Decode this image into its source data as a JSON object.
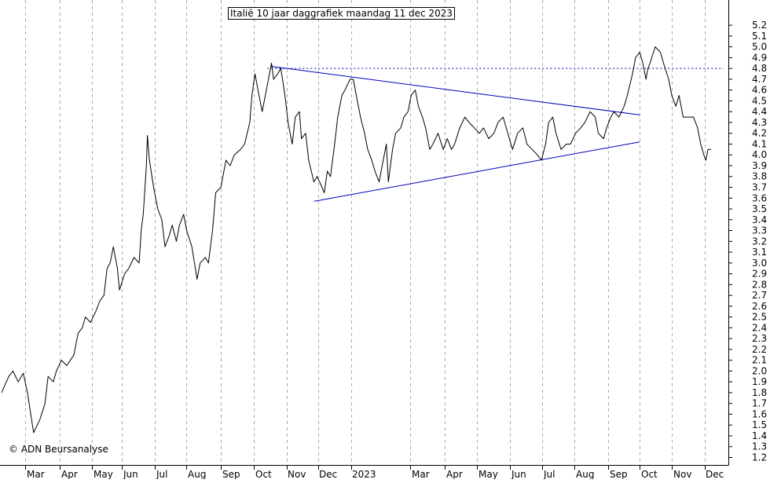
{
  "chart_data": {
    "type": "line",
    "title": "Italië 10 jaar daggrafiek maandag 11 dec 2023",
    "xlabel": "",
    "ylabel": "",
    "ylim": [
      1.1,
      5.3
    ],
    "y_ticks": [
      "1.2",
      "1.3",
      "1.4",
      "1.5",
      "1.6",
      "1.7",
      "1.8",
      "1.9",
      "2.0",
      "2.1",
      "2.2",
      "2.3",
      "2.4",
      "2.5",
      "2.6",
      "2.7",
      "2.8",
      "2.9",
      "3.0",
      "3.1",
      "3.2",
      "3.3",
      "3.4",
      "3.5",
      "3.6",
      "3.7",
      "3.8",
      "3.9",
      "4.0",
      "4.1",
      "4.2",
      "4.3",
      "4.4",
      "4.5",
      "4.6",
      "4.7",
      "4.8",
      "4.9",
      "5.0",
      "5.1",
      "5.2"
    ],
    "x_labels": [
      "Mar",
      "Apr",
      "May",
      "Jun",
      "Jul",
      "Aug",
      "Sep",
      "Oct",
      "Nov",
      "Dec",
      "2023",
      "Mar",
      "Apr",
      "May",
      "Jun",
      "Jul",
      "Aug",
      "Sep",
      "Oct",
      "Nov",
      "Dec"
    ],
    "x_start": "2022-01-24",
    "x_end": "2023-12-11",
    "grid": "vertical dashed",
    "series": [
      {
        "name": "",
        "color": "#000000",
        "points": [
          [
            "2022-01-24",
            1.8
          ],
          [
            "2022-01-31",
            1.95
          ],
          [
            "2022-02-04",
            2.0
          ],
          [
            "2022-02-09",
            1.9
          ],
          [
            "2022-02-14",
            1.98
          ],
          [
            "2022-02-18",
            1.8
          ],
          [
            "2022-02-22",
            1.55
          ],
          [
            "2022-02-24",
            1.43
          ],
          [
            "2022-03-02",
            1.55
          ],
          [
            "2022-03-07",
            1.7
          ],
          [
            "2022-03-10",
            1.95
          ],
          [
            "2022-03-15",
            1.9
          ],
          [
            "2022-03-18",
            2.0
          ],
          [
            "2022-03-23",
            2.1
          ],
          [
            "2022-03-28",
            2.05
          ],
          [
            "2022-04-04",
            2.15
          ],
          [
            "2022-04-08",
            2.35
          ],
          [
            "2022-04-12",
            2.4
          ],
          [
            "2022-04-15",
            2.5
          ],
          [
            "2022-04-20",
            2.45
          ],
          [
            "2022-04-25",
            2.55
          ],
          [
            "2022-04-29",
            2.65
          ],
          [
            "2022-05-03",
            2.7
          ],
          [
            "2022-05-06",
            2.95
          ],
          [
            "2022-05-09",
            3.0
          ],
          [
            "2022-05-12",
            3.15
          ],
          [
            "2022-05-16",
            2.95
          ],
          [
            "2022-05-18",
            2.75
          ],
          [
            "2022-05-23",
            2.9
          ],
          [
            "2022-05-27",
            2.95
          ],
          [
            "2022-06-01",
            3.05
          ],
          [
            "2022-06-06",
            3.0
          ],
          [
            "2022-06-08",
            3.3
          ],
          [
            "2022-06-10",
            3.45
          ],
          [
            "2022-06-13",
            3.9
          ],
          [
            "2022-06-14",
            4.18
          ],
          [
            "2022-06-16",
            3.95
          ],
          [
            "2022-06-20",
            3.7
          ],
          [
            "2022-06-24",
            3.5
          ],
          [
            "2022-06-28",
            3.4
          ],
          [
            "2022-07-01",
            3.15
          ],
          [
            "2022-07-05",
            3.25
          ],
          [
            "2022-07-08",
            3.35
          ],
          [
            "2022-07-12",
            3.2
          ],
          [
            "2022-07-15",
            3.35
          ],
          [
            "2022-07-19",
            3.45
          ],
          [
            "2022-07-22",
            3.3
          ],
          [
            "2022-07-27",
            3.15
          ],
          [
            "2022-08-01",
            2.85
          ],
          [
            "2022-08-04",
            3.0
          ],
          [
            "2022-08-09",
            3.05
          ],
          [
            "2022-08-12",
            3.0
          ],
          [
            "2022-08-16",
            3.3
          ],
          [
            "2022-08-19",
            3.65
          ],
          [
            "2022-08-24",
            3.7
          ],
          [
            "2022-08-29",
            3.95
          ],
          [
            "2022-09-02",
            3.9
          ],
          [
            "2022-09-06",
            4.0
          ],
          [
            "2022-09-12",
            4.05
          ],
          [
            "2022-09-16",
            4.1
          ],
          [
            "2022-09-21",
            4.3
          ],
          [
            "2022-09-23",
            4.55
          ],
          [
            "2022-09-26",
            4.75
          ],
          [
            "2022-09-29",
            4.6
          ],
          [
            "2022-10-03",
            4.4
          ],
          [
            "2022-10-07",
            4.6
          ],
          [
            "2022-10-10",
            4.75
          ],
          [
            "2022-10-12",
            4.85
          ],
          [
            "2022-10-14",
            4.7
          ],
          [
            "2022-10-18",
            4.75
          ],
          [
            "2022-10-21",
            4.8
          ],
          [
            "2022-10-25",
            4.55
          ],
          [
            "2022-10-28",
            4.3
          ],
          [
            "2022-11-01",
            4.1
          ],
          [
            "2022-11-04",
            4.35
          ],
          [
            "2022-11-08",
            4.4
          ],
          [
            "2022-11-10",
            4.15
          ],
          [
            "2022-11-14",
            4.2
          ],
          [
            "2022-11-17",
            3.95
          ],
          [
            "2022-11-22",
            3.75
          ],
          [
            "2022-11-25",
            3.8
          ],
          [
            "2022-11-29",
            3.72
          ],
          [
            "2022-12-02",
            3.65
          ],
          [
            "2022-12-05",
            3.85
          ],
          [
            "2022-12-08",
            3.8
          ],
          [
            "2022-12-12",
            4.1
          ],
          [
            "2022-12-15",
            4.35
          ],
          [
            "2022-12-19",
            4.55
          ],
          [
            "2022-12-22",
            4.6
          ],
          [
            "2022-12-27",
            4.7
          ],
          [
            "2022-12-30",
            4.7
          ],
          [
            "2023-01-03",
            4.5
          ],
          [
            "2023-01-06",
            4.35
          ],
          [
            "2023-01-10",
            4.2
          ],
          [
            "2023-01-13",
            4.05
          ],
          [
            "2023-01-17",
            3.95
          ],
          [
            "2023-01-20",
            3.85
          ],
          [
            "2023-01-24",
            3.75
          ],
          [
            "2023-01-27",
            3.9
          ],
          [
            "2023-01-31",
            4.1
          ],
          [
            "2023-02-02",
            3.75
          ],
          [
            "2023-02-06",
            4.05
          ],
          [
            "2023-02-09",
            4.2
          ],
          [
            "2023-02-14",
            4.25
          ],
          [
            "2023-02-17",
            4.35
          ],
          [
            "2023-02-21",
            4.4
          ],
          [
            "2023-02-24",
            4.55
          ],
          [
            "2023-02-28",
            4.6
          ],
          [
            "2023-03-03",
            4.45
          ],
          [
            "2023-03-07",
            4.35
          ],
          [
            "2023-03-10",
            4.25
          ],
          [
            "2023-03-14",
            4.05
          ],
          [
            "2023-03-17",
            4.1
          ],
          [
            "2023-03-22",
            4.2
          ],
          [
            "2023-03-27",
            4.05
          ],
          [
            "2023-03-31",
            4.15
          ],
          [
            "2023-04-04",
            4.05
          ],
          [
            "2023-04-07",
            4.1
          ],
          [
            "2023-04-12",
            4.25
          ],
          [
            "2023-04-17",
            4.35
          ],
          [
            "2023-04-21",
            4.3
          ],
          [
            "2023-04-26",
            4.25
          ],
          [
            "2023-05-01",
            4.2
          ],
          [
            "2023-05-05",
            4.25
          ],
          [
            "2023-05-10",
            4.15
          ],
          [
            "2023-05-15",
            4.2
          ],
          [
            "2023-05-19",
            4.3
          ],
          [
            "2023-05-24",
            4.35
          ],
          [
            "2023-05-30",
            4.15
          ],
          [
            "2023-06-02",
            4.05
          ],
          [
            "2023-06-07",
            4.2
          ],
          [
            "2023-06-12",
            4.25
          ],
          [
            "2023-06-16",
            4.1
          ],
          [
            "2023-06-21",
            4.05
          ],
          [
            "2023-06-26",
            4.0
          ],
          [
            "2023-06-30",
            3.95
          ],
          [
            "2023-07-04",
            4.1
          ],
          [
            "2023-07-07",
            4.3
          ],
          [
            "2023-07-11",
            4.35
          ],
          [
            "2023-07-14",
            4.2
          ],
          [
            "2023-07-19",
            4.05
          ],
          [
            "2023-07-24",
            4.1
          ],
          [
            "2023-07-28",
            4.1
          ],
          [
            "2023-08-02",
            4.2
          ],
          [
            "2023-08-07",
            4.25
          ],
          [
            "2023-08-11",
            4.3
          ],
          [
            "2023-08-16",
            4.4
          ],
          [
            "2023-08-21",
            4.35
          ],
          [
            "2023-08-24",
            4.2
          ],
          [
            "2023-08-29",
            4.15
          ],
          [
            "2023-09-01",
            4.25
          ],
          [
            "2023-09-05",
            4.35
          ],
          [
            "2023-09-08",
            4.4
          ],
          [
            "2023-09-13",
            4.35
          ],
          [
            "2023-09-18",
            4.45
          ],
          [
            "2023-09-21",
            4.55
          ],
          [
            "2023-09-26",
            4.75
          ],
          [
            "2023-09-29",
            4.9
          ],
          [
            "2023-10-03",
            4.95
          ],
          [
            "2023-10-06",
            4.85
          ],
          [
            "2023-10-09",
            4.7
          ],
          [
            "2023-10-11",
            4.8
          ],
          [
            "2023-10-13",
            4.85
          ],
          [
            "2023-10-18",
            5.0
          ],
          [
            "2023-10-23",
            4.95
          ],
          [
            "2023-10-26",
            4.85
          ],
          [
            "2023-10-31",
            4.7
          ],
          [
            "2023-11-03",
            4.55
          ],
          [
            "2023-11-07",
            4.45
          ],
          [
            "2023-11-10",
            4.55
          ],
          [
            "2023-11-14",
            4.35
          ],
          [
            "2023-11-17",
            4.35
          ],
          [
            "2023-11-21",
            4.35
          ],
          [
            "2023-11-24",
            4.35
          ],
          [
            "2023-11-28",
            4.25
          ],
          [
            "2023-12-01",
            4.1
          ],
          [
            "2023-12-04",
            4.0
          ],
          [
            "2023-12-06",
            3.95
          ],
          [
            "2023-12-08",
            4.05
          ],
          [
            "2023-12-11",
            4.05
          ]
        ]
      }
    ],
    "trendlines": [
      {
        "color": "#0000bb",
        "from": [
          "2022-10-11",
          4.82
        ],
        "to": [
          "2023-10-03",
          4.37
        ]
      },
      {
        "color": "#0000bb",
        "from": [
          "2022-11-22",
          3.57
        ],
        "to": [
          "2023-10-03",
          4.12
        ]
      },
      {
        "color": "#0000bb",
        "style": "dotted",
        "from": [
          "2022-10-08",
          4.8
        ],
        "to": [
          "2023-12-23",
          4.8
        ]
      }
    ]
  },
  "footer": {
    "copyright": "© ADN Beursanalyse"
  },
  "colors": {
    "line": "#000000",
    "trendline": "#0000bb",
    "grid": "#aaaaaa",
    "background": "#ffffff"
  }
}
